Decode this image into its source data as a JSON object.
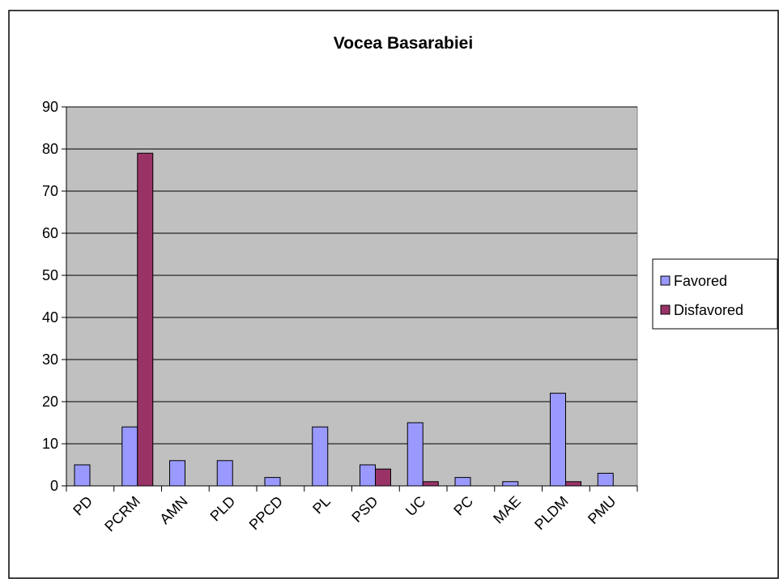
{
  "chart_data": {
    "type": "bar",
    "title": "Vocea Basarabiei",
    "categories": [
      "PD",
      "PCRM",
      "AMN",
      "PLD",
      "PPCD",
      "PL",
      "PSD",
      "UC",
      "PC",
      "MAE",
      "PLDM",
      "PMU"
    ],
    "series": [
      {
        "name": "Favored",
        "color": "#9999ff",
        "values": [
          5,
          14,
          6,
          6,
          2,
          14,
          5,
          15,
          2,
          1,
          22,
          3
        ]
      },
      {
        "name": "Disfavored",
        "color": "#993366",
        "values": [
          0,
          79,
          0,
          0,
          0,
          0,
          4,
          1,
          0,
          0,
          1,
          0
        ]
      }
    ],
    "ylim": [
      0,
      90
    ],
    "yticks": [
      0,
      10,
      20,
      30,
      40,
      50,
      60,
      70,
      80,
      90
    ],
    "grid": true,
    "legend": "right"
  }
}
